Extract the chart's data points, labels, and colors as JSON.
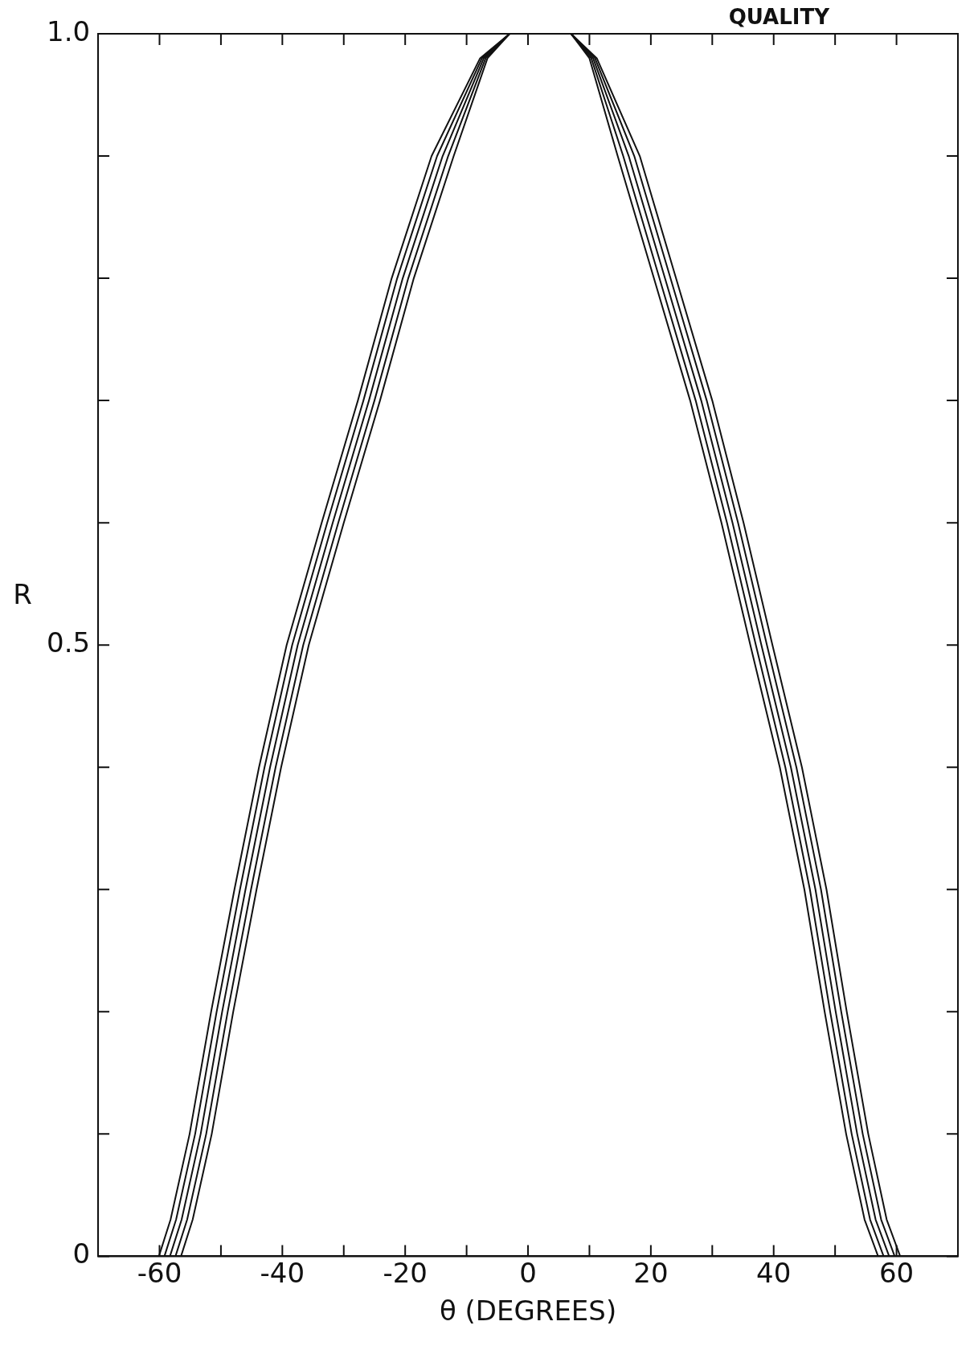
{
  "chart_data": {
    "type": "line",
    "xlabel": "θ (DEGREES)",
    "ylabel": "R",
    "annotations": [
      "QUALITY"
    ],
    "xlim": [
      -70,
      70
    ],
    "ylim": [
      0,
      1.0
    ],
    "xticks": [
      -60,
      {
        "value": -50,
        "label": null
      },
      -40,
      {
        "value": -30,
        "label": null
      },
      -20,
      {
        "value": -10,
        "label": null
      },
      0,
      {
        "value": 10,
        "label": null
      },
      20,
      {
        "value": 30,
        "label": null
      },
      40,
      {
        "value": 50,
        "label": null
      },
      60
    ],
    "yticks": [
      0,
      {
        "value": 0.1,
        "label": null
      },
      {
        "value": 0.2,
        "label": null
      },
      {
        "value": 0.3,
        "label": null
      },
      {
        "value": 0.4,
        "label": null
      },
      {
        "value": 0.5,
        "label": "0.5"
      },
      {
        "value": 0.6,
        "label": null
      },
      {
        "value": 0.7,
        "label": null
      },
      {
        "value": 0.8,
        "label": null
      },
      {
        "value": 0.9,
        "label": null
      },
      {
        "value": 1.0,
        "label": "1.0"
      }
    ],
    "grid": false,
    "legend": false,
    "marker": "none",
    "series": [
      {
        "color": "#111111",
        "x": [
          -60.1,
          -58.2,
          -55.1,
          -51.6,
          -47.8,
          -43.8,
          -39.3,
          -33.6,
          -27.7,
          -22.2,
          -15.7,
          -7.8,
          -3,
          7,
          10,
          14.6,
          20.5,
          26.4,
          31.5,
          36.2,
          41,
          45,
          48.3,
          51.8,
          54.8,
          57
        ],
        "values": [
          0,
          0.03,
          0.1,
          0.2,
          0.3,
          0.4,
          0.5,
          0.6,
          0.7,
          0.8,
          0.9,
          0.98,
          1,
          1,
          0.98,
          0.9,
          0.8,
          0.7,
          0.6,
          0.5,
          0.4,
          0.3,
          0.2,
          0.1,
          0.03,
          0
        ]
      },
      {
        "color": "#111111",
        "x": [
          -59.2,
          -57.3,
          -54.2,
          -50.7,
          -46.9,
          -42.9,
          -38.4,
          -32.7,
          -26.8,
          -21.3,
          -14.8,
          -7.5,
          -3,
          7,
          10.3,
          15.5,
          21.4,
          27.3,
          32.4,
          37.1,
          41.9,
          45.9,
          49.2,
          52.7,
          55.7,
          57.9
        ],
        "values": [
          0,
          0.03,
          0.1,
          0.2,
          0.3,
          0.4,
          0.5,
          0.6,
          0.7,
          0.8,
          0.9,
          0.98,
          1,
          1,
          0.98,
          0.9,
          0.8,
          0.7,
          0.6,
          0.5,
          0.4,
          0.3,
          0.2,
          0.1,
          0.03,
          0
        ]
      },
      {
        "color": "#111111",
        "x": [
          -58.3,
          -56.4,
          -53.3,
          -49.8,
          -46,
          -42,
          -37.5,
          -31.8,
          -25.9,
          -20.4,
          -13.9,
          -7.2,
          -3,
          7,
          10.6,
          16.4,
          22.3,
          28.2,
          33.3,
          38,
          42.8,
          46.8,
          50.1,
          53.6,
          56.6,
          58.8
        ],
        "values": [
          0,
          0.03,
          0.1,
          0.2,
          0.3,
          0.4,
          0.5,
          0.6,
          0.7,
          0.8,
          0.9,
          0.98,
          1,
          1,
          0.98,
          0.9,
          0.8,
          0.7,
          0.6,
          0.5,
          0.4,
          0.3,
          0.2,
          0.1,
          0.03,
          0
        ]
      },
      {
        "color": "#111111",
        "x": [
          -57.4,
          -55.5,
          -52.4,
          -48.9,
          -45.1,
          -41.1,
          -36.6,
          -30.9,
          -25,
          -19.5,
          -13,
          -6.9,
          -3,
          7,
          10.9,
          17.3,
          23.2,
          29.1,
          34.2,
          38.9,
          43.7,
          47.7,
          51,
          54.5,
          57.5,
          59.7
        ],
        "values": [
          0,
          0.03,
          0.1,
          0.2,
          0.3,
          0.4,
          0.5,
          0.6,
          0.7,
          0.8,
          0.9,
          0.98,
          1,
          1,
          0.98,
          0.9,
          0.8,
          0.7,
          0.6,
          0.5,
          0.4,
          0.3,
          0.2,
          0.1,
          0.03,
          0
        ]
      },
      {
        "color": "#111111",
        "x": [
          -56.5,
          -54.6,
          -51.5,
          -48,
          -44.2,
          -40.2,
          -35.7,
          -30,
          -24.1,
          -18.6,
          -12.1,
          -6.6,
          -3,
          7,
          11.2,
          18.2,
          24.1,
          30,
          35.1,
          39.8,
          44.6,
          48.6,
          51.9,
          55.4,
          58.4,
          60.6
        ],
        "values": [
          0,
          0.03,
          0.1,
          0.2,
          0.3,
          0.4,
          0.5,
          0.6,
          0.7,
          0.8,
          0.9,
          0.98,
          1,
          1,
          0.98,
          0.9,
          0.8,
          0.7,
          0.6,
          0.5,
          0.4,
          0.3,
          0.2,
          0.1,
          0.03,
          0
        ]
      }
    ]
  }
}
